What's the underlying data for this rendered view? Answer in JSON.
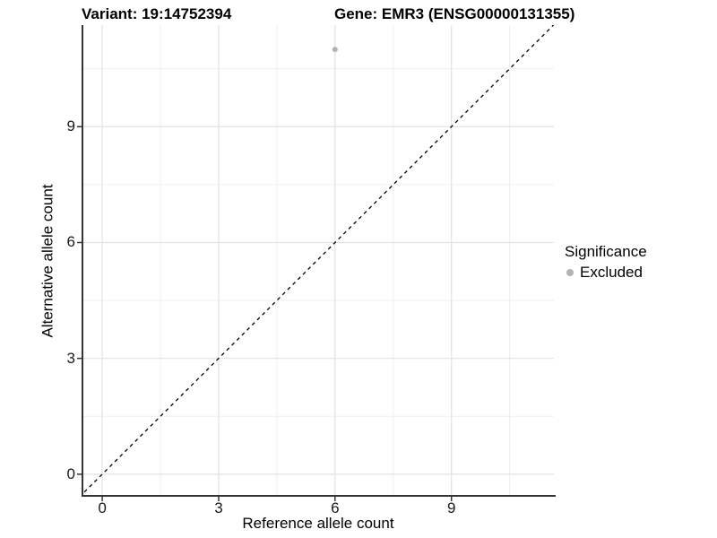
{
  "figure": {
    "title_left": "Variant: 19:14752394",
    "title_right": "Gene: EMR3 (ENSG00000131355)"
  },
  "chart_data": {
    "type": "scatter",
    "xlabel": "Reference allele count",
    "ylabel": "Alternative allele count",
    "x_ticks": [
      0,
      3,
      6,
      9
    ],
    "y_ticks": [
      0,
      3,
      6,
      9
    ],
    "x_minor_ticks": [
      1.5,
      4.5,
      7.5,
      10.5
    ],
    "y_minor_ticks": [
      1.5,
      4.5,
      7.5,
      10.5
    ],
    "xlim": [
      -0.51,
      11.64
    ],
    "ylim": [
      -0.56,
      11.63
    ],
    "grid": {
      "major": true,
      "minor": true
    },
    "points": [
      {
        "x": 6,
        "y": 11,
        "significance": "Excluded"
      }
    ],
    "reference_line": {
      "slope": 1,
      "intercept": 0,
      "style": "dashed",
      "color": "#000000"
    },
    "legend": {
      "title": "Significance",
      "position": "right",
      "entries": [
        {
          "label": "Excluded",
          "color": "#b3b3b3"
        }
      ]
    },
    "colors": {
      "point": "#b3b3b3",
      "grid_major": "#e2e2e2",
      "grid_minor": "#efefef",
      "axis_line": "#333333",
      "tick_mark": "#333333"
    }
  }
}
